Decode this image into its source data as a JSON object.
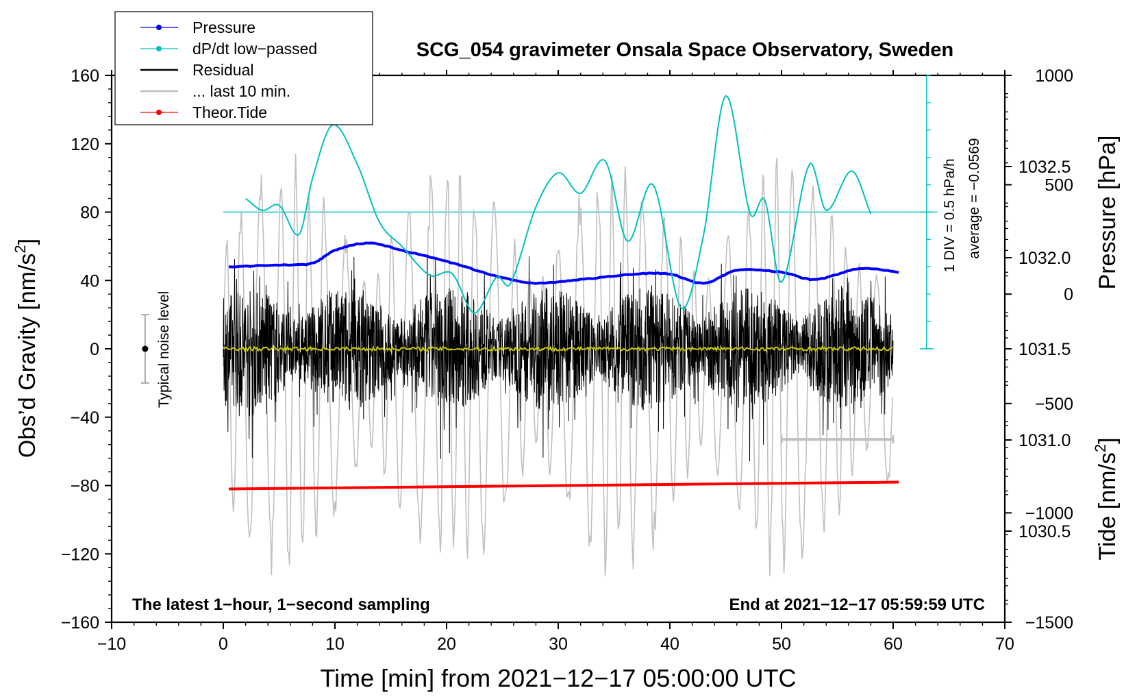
{
  "chart_data": {
    "type": "line",
    "title": "SCG_054 gravimeter Onsala Space Observatory, Sweden",
    "xlabel": "Time [min] from 2021−12−17 05:00:00 UTC",
    "ylabel": "Obs’d Gravity [nm/s²]",
    "ylabel_main": "Obs’d Gravity [nm/s",
    "ylabel_sup": "2",
    "ylabel_close": "]",
    "xlim": [
      -10,
      70
    ],
    "ylim": [
      -160,
      160
    ],
    "x_ticks": [
      -10,
      0,
      10,
      20,
      30,
      40,
      50,
      60,
      70
    ],
    "x_tick_labels": [
      "−10",
      "0",
      "10",
      "20",
      "30",
      "40",
      "50",
      "60",
      "70"
    ],
    "y_ticks": [
      -160,
      -120,
      -80,
      -40,
      0,
      40,
      80,
      120,
      160
    ],
    "y_tick_labels": [
      "−160",
      "−120",
      "−80",
      "−40",
      "0",
      "40",
      "80",
      "120",
      "160"
    ],
    "pressure_axis": {
      "label": "Pressure [hPa]",
      "ticks": [
        1030.5,
        1031.0,
        1031.5,
        1032.0,
        1032.5
      ],
      "tick_labels": [
        "1030.5",
        "1031.0",
        "1031.5",
        "1032.0",
        "1032.5"
      ],
      "range": [
        1030.0,
        1033.0
      ]
    },
    "tide_axis": {
      "label_main": "Tide [nm/s",
      "label_sup": "2",
      "label_close": "]",
      "ticks": [
        -1500,
        -1000,
        -500,
        0,
        500,
        1000
      ],
      "tick_labels": [
        "−1500",
        "−1000",
        "−500",
        "0",
        "500",
        "1000"
      ],
      "range": [
        -1500,
        1000
      ]
    },
    "dpdt_scale": {
      "div_label": "1 DIV = 0.5 hPa/h",
      "average_label": "average = −0.0569",
      "baseline": 80
    },
    "legend": [
      {
        "label": "Pressure",
        "color": "#0000ff",
        "marker": true
      },
      {
        "label": "dP/dt low−passed",
        "color": "#00c0c0",
        "marker": true
      },
      {
        "label": "Residual",
        "color": "#000000",
        "marker": false
      },
      {
        "label": "... last 10 min.",
        "color": "#c0c0c0",
        "marker": false
      },
      {
        "label": "Theor.Tide",
        "color": "#ff0000",
        "marker": true
      }
    ],
    "legend_position": "top-left",
    "series": [
      {
        "name": "Pressure",
        "units": "hPa",
        "color": "#0000ff",
        "x": [
          0.5,
          5,
          8,
          10,
          13,
          16,
          20,
          25,
          28,
          32,
          37,
          40,
          43,
          46,
          50,
          53,
          57,
          60.5
        ],
        "y": [
          1031.95,
          1031.96,
          1031.97,
          1032.04,
          1032.08,
          1032.04,
          1031.98,
          1031.89,
          1031.86,
          1031.88,
          1031.91,
          1031.91,
          1031.86,
          1031.93,
          1031.92,
          1031.88,
          1031.94,
          1031.92
        ]
      },
      {
        "name": "dP/dt low−passed",
        "color": "#00c0c0",
        "x": [
          2,
          3.5,
          5,
          6.8,
          8,
          9.8,
          12,
          14,
          16,
          18.5,
          20.5,
          22.5,
          24.5,
          25.7,
          28,
          30,
          32,
          34.2,
          36.2,
          38.5,
          41,
          43,
          45,
          47.2,
          48.5,
          50,
          52.5,
          54,
          56.3,
          58
        ],
        "y": [
          88,
          81,
          84,
          67,
          100,
          131,
          108,
          74,
          60,
          43,
          44,
          21,
          42,
          38,
          83,
          103,
          91,
          110,
          63,
          96,
          24,
          66,
          148,
          79,
          87,
          39,
          108,
          81,
          104,
          79
        ]
      },
      {
        "name": "Residual",
        "color": "#000000",
        "x_range": [
          0,
          60
        ],
        "amplitude": 60
      },
      {
        "name": "Residual smoothed",
        "color": "#c8c800",
        "x_range": [
          0,
          60
        ],
        "level": 0
      },
      {
        "name": "... last 10 min.",
        "color": "#c0c0c0",
        "x_range": [
          0,
          60
        ],
        "amplitude_tide_units": 1000
      },
      {
        "name": "Theor.Tide",
        "color": "#ff0000",
        "x": [
          0.5,
          60.5
        ],
        "y": [
          -82,
          -78
        ]
      }
    ],
    "noise_bar": {
      "label": "Typical noise level",
      "x": -7,
      "center": 0,
      "half_width": 20
    },
    "last10_bar": {
      "x": [
        50,
        60
      ]
    },
    "annotations": {
      "bottom_left": "The latest 1−hour, 1−second sampling",
      "bottom_right": "End at 2021−12−17 05:59:59 UTC"
    }
  }
}
